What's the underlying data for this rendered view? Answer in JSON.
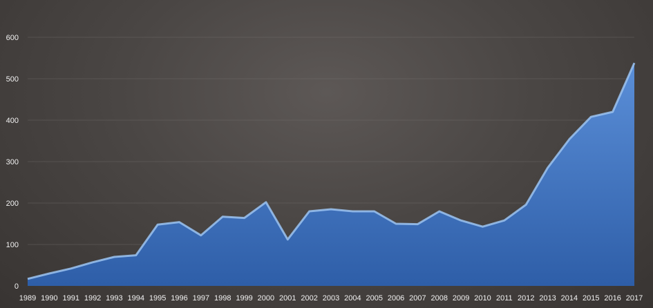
{
  "chart_data": {
    "type": "area",
    "title": "",
    "xlabel": "",
    "ylabel": "",
    "x": [
      "1989",
      "1990",
      "1991",
      "1992",
      "1993",
      "1994",
      "1995",
      "1996",
      "1997",
      "1998",
      "1999",
      "2000",
      "2001",
      "2002",
      "2003",
      "2004",
      "2005",
      "2006",
      "2007",
      "2008",
      "2009",
      "2010",
      "2011",
      "2012",
      "2013",
      "2014",
      "2015",
      "2016",
      "2017"
    ],
    "series": [
      {
        "values": [
          17,
          30,
          42,
          57,
          70,
          74,
          148,
          154,
          122,
          167,
          164,
          202,
          112,
          180,
          185,
          180,
          180,
          150,
          149,
          180,
          158,
          143,
          158,
          196,
          285,
          354,
          408,
          420,
          538
        ]
      }
    ],
    "ylim": [
      0,
      600
    ],
    "yticks": [
      0,
      100,
      200,
      300,
      400,
      500,
      600
    ],
    "grid": true,
    "legend": "none",
    "colors": {
      "fill_top": "#5b8fd8",
      "fill_bottom": "#2e5ea8",
      "edge": "#9cc4f2"
    }
  }
}
